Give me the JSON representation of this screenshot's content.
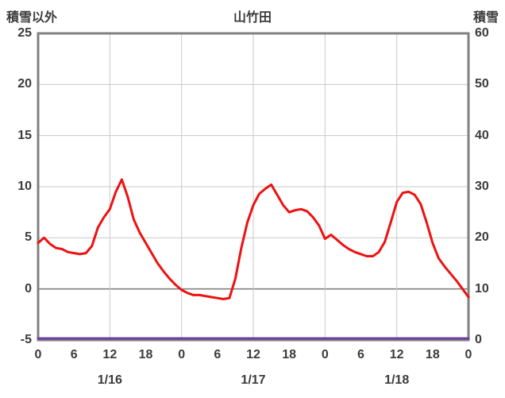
{
  "header": {
    "left_axis_label": "積雪以外",
    "title": "山竹田",
    "right_axis_label": "積雪"
  },
  "colors": {
    "frame": "#808080",
    "gridline": "#c9c9c9",
    "zero_line": "#808080",
    "text": "#3b3b3b",
    "series_red": "#ee1111",
    "series_purple": "#6a3fa0"
  },
  "chart_data": {
    "type": "line",
    "title": "山竹田",
    "left_axis": {
      "label": "積雪以外",
      "min": -5,
      "max": 25,
      "ticks": [
        25,
        20,
        15,
        10,
        5,
        0,
        -5
      ]
    },
    "right_axis": {
      "label": "積雪",
      "min": 0,
      "max": 60,
      "ticks": [
        60,
        50,
        40,
        30,
        20,
        10,
        0
      ]
    },
    "x_axis": {
      "hours_total": 72,
      "hour_tick_step": 6,
      "hour_tick_labels": [
        "0",
        "6",
        "12",
        "18",
        "0",
        "6",
        "12",
        "18",
        "0",
        "6",
        "12",
        "18",
        "0"
      ],
      "date_labels": [
        "1/16",
        "1/17",
        "1/18"
      ],
      "date_label_hours": [
        12,
        36,
        60
      ],
      "vertical_gridline_hours": [
        12,
        24,
        36,
        48,
        60
      ]
    },
    "grid": true,
    "legend": "none",
    "series": [
      {
        "name": "積雪以外",
        "axis": "left",
        "color": "#ee1111",
        "width": 3,
        "x_step_hours": 1,
        "values": [
          4.5,
          5.0,
          4.4,
          4.0,
          3.9,
          3.6,
          3.5,
          3.4,
          3.5,
          4.2,
          6.0,
          7.0,
          7.8,
          9.5,
          10.7,
          9.0,
          6.8,
          5.5,
          4.5,
          3.5,
          2.5,
          1.7,
          1.0,
          0.4,
          -0.1,
          -0.4,
          -0.6,
          -0.6,
          -0.7,
          -0.8,
          -0.9,
          -1.0,
          -0.9,
          1.0,
          4.0,
          6.5,
          8.2,
          9.3,
          9.8,
          10.2,
          9.2,
          8.2,
          7.5,
          7.7,
          7.8,
          7.6,
          7.0,
          6.2,
          4.9,
          5.3,
          4.8,
          4.3,
          3.9,
          3.6,
          3.4,
          3.2,
          3.2,
          3.6,
          4.6,
          6.5,
          8.5,
          9.4,
          9.5,
          9.2,
          8.3,
          6.5,
          4.5,
          3.0,
          2.2,
          1.5,
          0.8,
          0.0,
          -0.8
        ]
      },
      {
        "name": "積雪",
        "axis": "right",
        "color": "#6a3fa0",
        "width": 3,
        "x_step_hours": 1,
        "values": [
          0,
          0,
          0,
          0,
          0,
          0,
          0,
          0,
          0,
          0,
          0,
          0,
          0,
          0,
          0,
          0,
          0,
          0,
          0,
          0,
          0,
          0,
          0,
          0,
          0,
          0,
          0,
          0,
          0,
          0,
          0,
          0,
          0,
          0,
          0,
          0,
          0,
          0,
          0,
          0,
          0,
          0,
          0,
          0,
          0,
          0,
          0,
          0,
          0,
          0,
          0,
          0,
          0,
          0,
          0,
          0,
          0,
          0,
          0,
          0,
          0,
          0,
          0,
          0,
          0,
          0,
          0,
          0,
          0,
          0,
          0,
          0,
          0
        ]
      }
    ]
  }
}
